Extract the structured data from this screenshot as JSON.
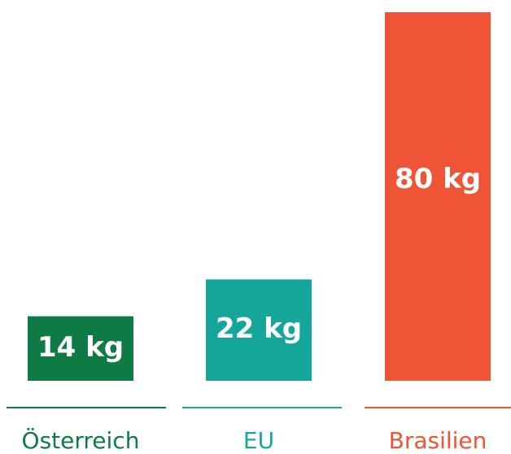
{
  "chart_data": {
    "type": "bar",
    "categories": [
      "Österreich",
      "EU",
      "Brasilien"
    ],
    "values": [
      14,
      22,
      80
    ],
    "value_labels": [
      "14 kg",
      "22 kg",
      "80 kg"
    ],
    "colors": [
      "#0e7a44",
      "#15a69b",
      "#ef5437"
    ]
  }
}
